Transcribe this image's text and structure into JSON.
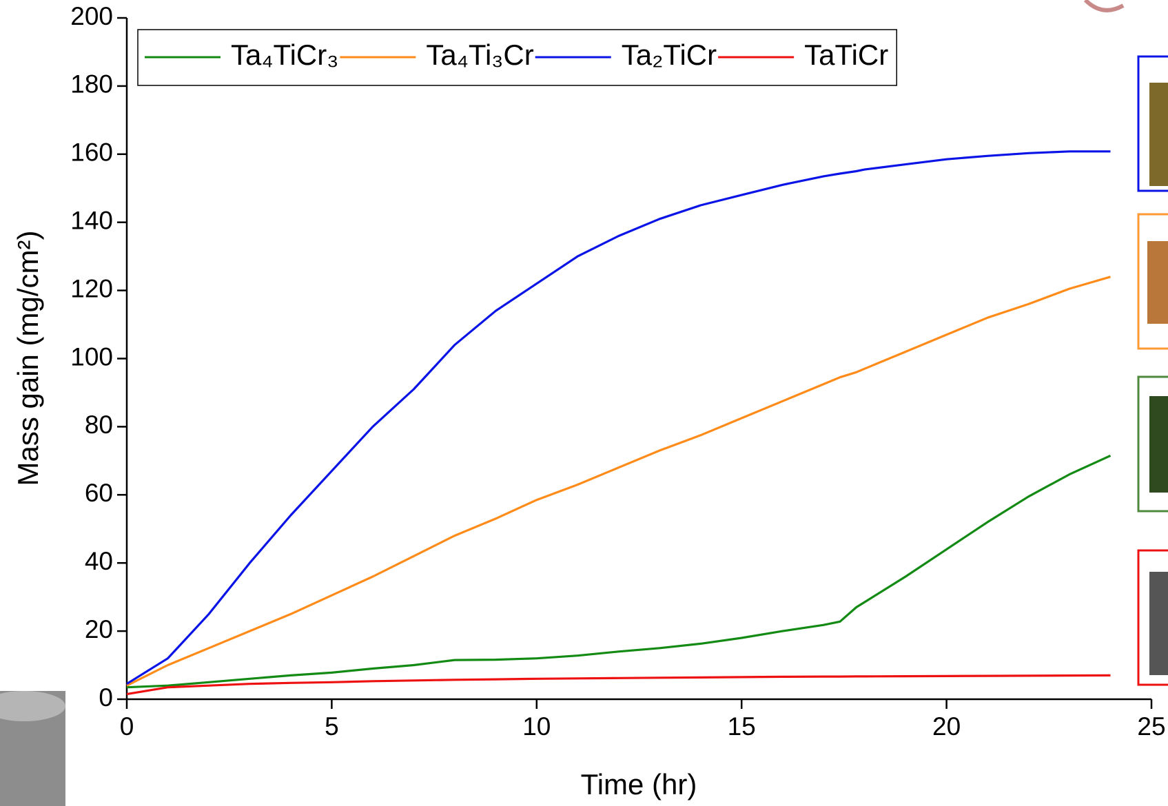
{
  "chart_data": {
    "type": "line",
    "xlabel": "Time (hr)",
    "ylabel": "Mass gain (mg/cm²)",
    "x": [
      0,
      1,
      2,
      3,
      4,
      5,
      6,
      7,
      8,
      9,
      10,
      11,
      12,
      13,
      14,
      15,
      16,
      17,
      17.4,
      17.8,
      18,
      19,
      20,
      21,
      22,
      23,
      24
    ],
    "series": [
      {
        "name": "Ta₄TiCr₃",
        "color": "#138a13",
        "values": [
          3.5,
          4,
          5,
          6,
          7,
          7.8,
          9,
          10,
          11.5,
          11.6,
          12,
          12.8,
          14,
          15,
          16.3,
          18,
          20,
          21.8,
          22.8,
          27,
          28.5,
          36,
          44,
          52,
          59.5,
          66,
          71.5
        ]
      },
      {
        "name": "Ta₄Ti₃Cr",
        "color": "#ff8c1a",
        "values": [
          4,
          10,
          15,
          20,
          25,
          30.5,
          36,
          42,
          48,
          53,
          58.5,
          63,
          68,
          73,
          77.5,
          82.5,
          87.5,
          92.5,
          94.5,
          96,
          97,
          102,
          107,
          112,
          116,
          120.5,
          124
        ]
      },
      {
        "name": "Ta₂TiCr",
        "color": "#0a14e6",
        "values": [
          4.5,
          12,
          25,
          40,
          54,
          67,
          80,
          91,
          104,
          114,
          122,
          130,
          136,
          141,
          145,
          148,
          151,
          153.5,
          154.3,
          155,
          155.5,
          157,
          158.5,
          159.5,
          160.3,
          160.8,
          160.8
        ]
      },
      {
        "name": "TaTiCr",
        "color": "#ee1111",
        "values": [
          1.5,
          3.5,
          4,
          4.5,
          4.8,
          5,
          5.3,
          5.5,
          5.7,
          5.85,
          6,
          6.1,
          6.2,
          6.3,
          6.4,
          6.5,
          6.6,
          6.65,
          6.65,
          6.7,
          6.7,
          6.75,
          6.8,
          6.85,
          6.9,
          6.95,
          7
        ]
      }
    ],
    "xlim": [
      0,
      25
    ],
    "xticks": [
      0,
      5,
      10,
      15,
      20,
      25
    ],
    "ylim": [
      0,
      200
    ],
    "yticks": [
      0,
      20,
      40,
      60,
      80,
      100,
      120,
      140,
      160,
      180,
      200
    ],
    "grid": false,
    "legend": "top"
  }
}
